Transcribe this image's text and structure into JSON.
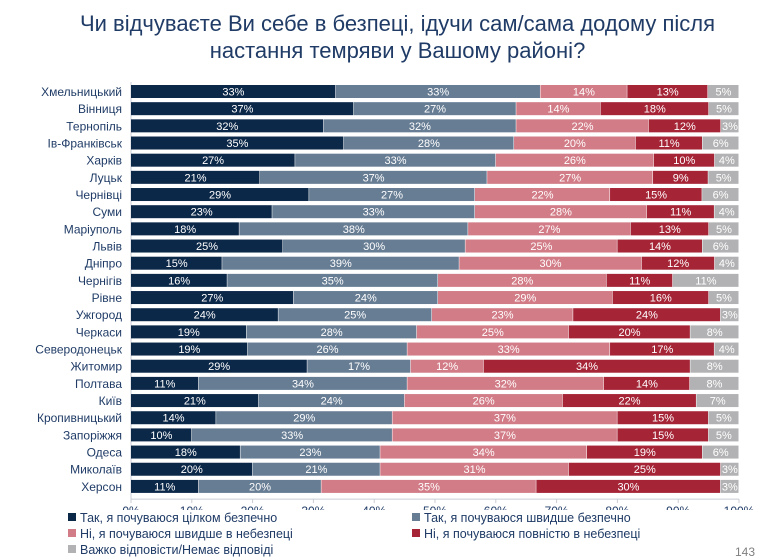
{
  "title": {
    "line1": "Чи відчуваєте Ви себе в безпеці, ідучи сам/сама додому після",
    "line2": "настання темряви у Вашому районі?"
  },
  "page_number": "143",
  "chart_data": {
    "type": "bar",
    "orientation": "horizontal",
    "stacked": true,
    "title": "Чи відчуваєте Ви себе в безпеці, ідучи сам/сама додому після настання темряви у Вашому районі?",
    "xlim": [
      0,
      100
    ],
    "x_ticks": [
      "0%",
      "10%",
      "20%",
      "30%",
      "40%",
      "50%",
      "60%",
      "70%",
      "80%",
      "90%",
      "100%"
    ],
    "legend_placement": "bottom",
    "categories": [
      "Хмельницький",
      "Вінниця",
      "Тернопіль",
      "Ів-Франківськ",
      "Харків",
      "Луцьк",
      "Чернівці",
      "Суми",
      "Маріуполь",
      "Львів",
      "Дніпро",
      "Чернігів",
      "Рівне",
      "Ужгород",
      "Черкаси",
      "Северодонецьк",
      "Житомир",
      "Полтава",
      "Київ",
      "Кропивницький",
      "Запоріжжя",
      "Одеса",
      "Миколаїв",
      "Херсон"
    ],
    "series": [
      {
        "name": "Так, я почуваюся цілком безпечно",
        "color": "#0c2849",
        "values": [
          33,
          37,
          32,
          35,
          27,
          21,
          29,
          23,
          18,
          25,
          15,
          16,
          27,
          24,
          19,
          19,
          29,
          11,
          21,
          14,
          10,
          18,
          20,
          11
        ]
      },
      {
        "name": "Так, я почуваюся швидше безпечно",
        "color": "#677d94",
        "values": [
          33,
          27,
          32,
          28,
          33,
          37,
          27,
          33,
          38,
          30,
          39,
          35,
          24,
          25,
          28,
          26,
          17,
          34,
          24,
          29,
          33,
          23,
          21,
          20
        ]
      },
      {
        "name": "Ні, я почуваюся швидше в небезпеці",
        "color": "#d27c87",
        "values": [
          14,
          14,
          22,
          20,
          26,
          27,
          22,
          28,
          27,
          25,
          30,
          28,
          29,
          23,
          25,
          33,
          12,
          32,
          26,
          37,
          37,
          34,
          31,
          35
        ]
      },
      {
        "name": "Ні, я почуваюся повністю в небезпеці",
        "color": "#a52436",
        "values": [
          13,
          18,
          12,
          11,
          10,
          9,
          15,
          11,
          13,
          14,
          12,
          11,
          16,
          24,
          20,
          17,
          34,
          14,
          22,
          15,
          15,
          19,
          25,
          30
        ]
      },
      {
        "name": "Важко відповісти/Немає відповіді",
        "color": "#b2b2b4",
        "values": [
          5,
          5,
          3,
          6,
          4,
          5,
          6,
          4,
          5,
          6,
          4,
          11,
          5,
          3,
          8,
          4,
          8,
          8,
          7,
          5,
          5,
          6,
          3,
          3
        ]
      }
    ]
  }
}
